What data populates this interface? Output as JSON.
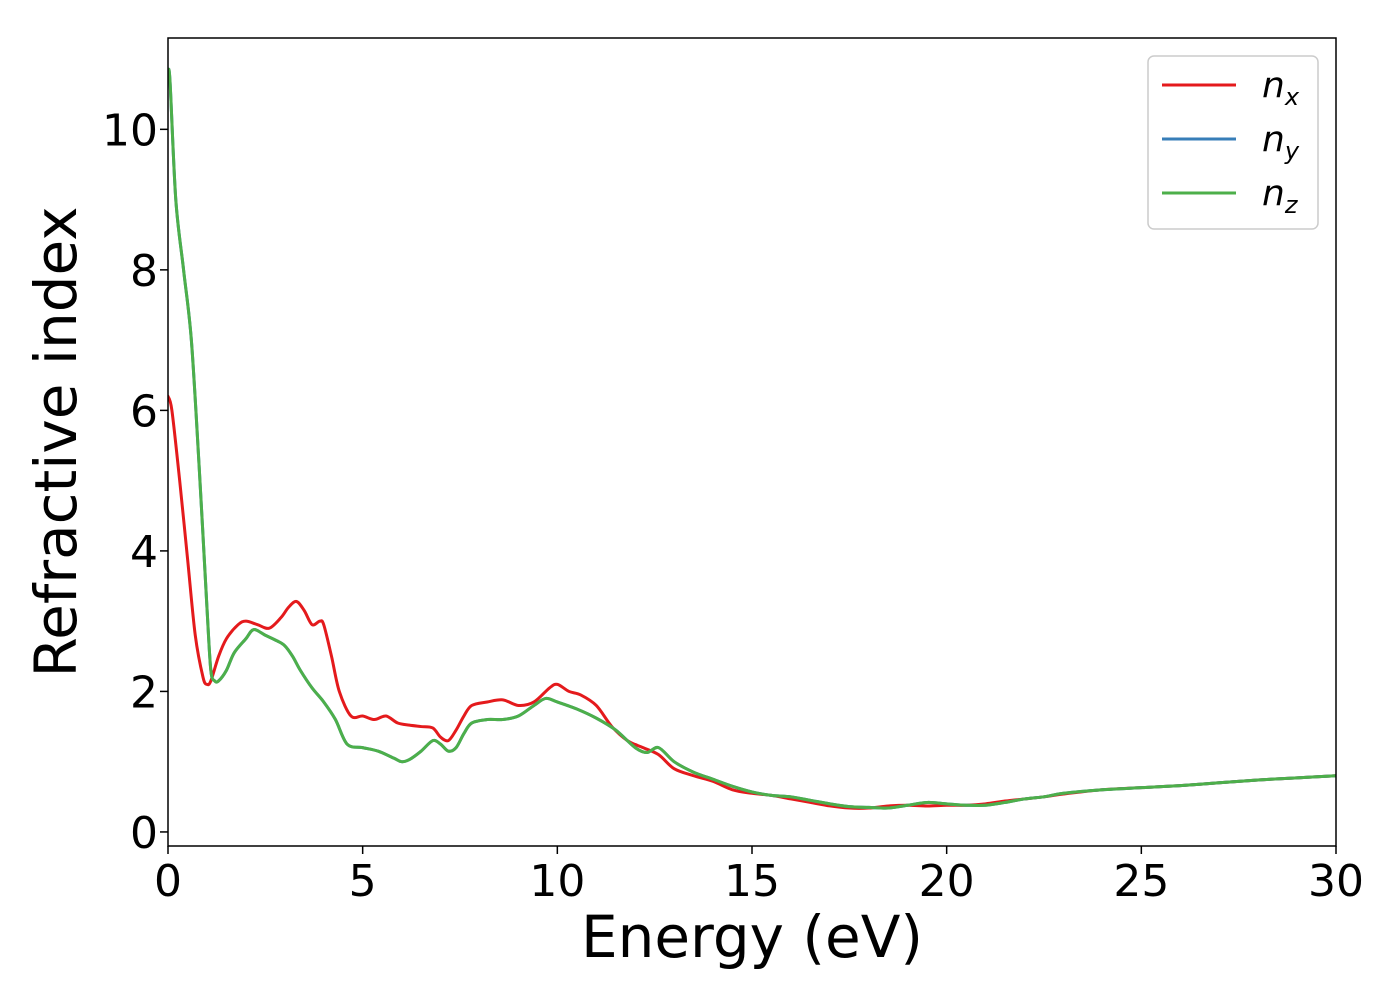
{
  "chart_data": {
    "type": "line",
    "title": "",
    "xlabel": "Energy (eV)",
    "ylabel": "Refractive index",
    "xlim": [
      0,
      30
    ],
    "ylim": [
      -0.2,
      11.3
    ],
    "xticks": [
      "0",
      "5",
      "10",
      "15",
      "20",
      "25",
      "30"
    ],
    "yticks": [
      "0",
      "2",
      "4",
      "6",
      "8",
      "10"
    ],
    "grid": false,
    "legend_position": "top-right",
    "series": [
      {
        "name": "n",
        "subscript": "x",
        "color": "#e41a1c",
        "x": [
          0,
          0.1,
          0.3,
          0.5,
          0.7,
          0.9,
          1.0,
          1.1,
          1.3,
          1.5,
          1.8,
          2.0,
          2.3,
          2.6,
          2.9,
          3.1,
          3.3,
          3.5,
          3.7,
          3.9,
          4.0,
          4.2,
          4.4,
          4.7,
          5.0,
          5.3,
          5.6,
          5.9,
          6.2,
          6.5,
          6.8,
          7.0,
          7.2,
          7.4,
          7.6,
          7.8,
          8.2,
          8.6,
          9.0,
          9.4,
          9.8,
          10.0,
          10.3,
          10.6,
          11.0,
          11.4,
          11.8,
          12.2,
          12.6,
          13.0,
          13.5,
          14.0,
          14.5,
          15.0,
          15.5,
          16.0,
          16.5,
          17.0,
          17.5,
          18.0,
          18.5,
          19.0,
          19.5,
          20.0,
          20.5,
          21.0,
          21.5,
          22.0,
          22.5,
          23.0,
          24.0,
          25.0,
          26.0,
          27.0,
          28.0,
          29.0,
          30.0
        ],
        "y": [
          6.2,
          6.0,
          5.0,
          3.9,
          2.8,
          2.2,
          2.1,
          2.15,
          2.5,
          2.75,
          2.95,
          3.0,
          2.95,
          2.9,
          3.05,
          3.2,
          3.28,
          3.15,
          2.95,
          3.0,
          2.95,
          2.5,
          2.0,
          1.65,
          1.65,
          1.6,
          1.65,
          1.55,
          1.52,
          1.5,
          1.48,
          1.35,
          1.3,
          1.45,
          1.65,
          1.8,
          1.85,
          1.88,
          1.8,
          1.85,
          2.05,
          2.1,
          2.0,
          1.95,
          1.8,
          1.5,
          1.3,
          1.2,
          1.1,
          0.9,
          0.8,
          0.72,
          0.6,
          0.55,
          0.52,
          0.47,
          0.42,
          0.37,
          0.34,
          0.34,
          0.37,
          0.38,
          0.37,
          0.38,
          0.38,
          0.4,
          0.44,
          0.47,
          0.5,
          0.54,
          0.6,
          0.63,
          0.66,
          0.7,
          0.74,
          0.77,
          0.8
        ]
      },
      {
        "name": "n",
        "subscript": "y",
        "color": "#377eb8",
        "x": [
          0,
          0.05,
          0.2,
          0.4,
          0.6,
          0.8,
          1.0,
          1.1,
          1.2,
          1.3,
          1.5,
          1.7,
          2.0,
          2.2,
          2.5,
          2.8,
          3.0,
          3.2,
          3.4,
          3.7,
          4.0,
          4.3,
          4.6,
          5.0,
          5.4,
          5.8,
          6.0,
          6.2,
          6.5,
          6.8,
          7.0,
          7.2,
          7.4,
          7.6,
          7.8,
          8.2,
          8.6,
          9.0,
          9.4,
          9.7,
          10.0,
          10.5,
          11.0,
          11.5,
          12.0,
          12.3,
          12.6,
          13.0,
          13.5,
          14.0,
          14.5,
          15.0,
          15.5,
          16.0,
          16.5,
          17.0,
          17.5,
          18.0,
          18.5,
          19.0,
          19.5,
          20.0,
          20.5,
          21.0,
          21.5,
          22.0,
          22.5,
          23.0,
          24.0,
          25.0,
          26.0,
          27.0,
          28.0,
          29.0,
          30.0
        ],
        "y": [
          10.8,
          10.7,
          9.0,
          8.0,
          7.0,
          5.2,
          3.2,
          2.3,
          2.15,
          2.15,
          2.3,
          2.55,
          2.75,
          2.88,
          2.8,
          2.72,
          2.65,
          2.5,
          2.3,
          2.05,
          1.85,
          1.6,
          1.25,
          1.2,
          1.15,
          1.05,
          1.0,
          1.03,
          1.15,
          1.3,
          1.25,
          1.15,
          1.2,
          1.4,
          1.55,
          1.6,
          1.6,
          1.65,
          1.8,
          1.9,
          1.85,
          1.75,
          1.62,
          1.45,
          1.2,
          1.13,
          1.2,
          1.0,
          0.85,
          0.75,
          0.65,
          0.57,
          0.52,
          0.5,
          0.45,
          0.4,
          0.36,
          0.35,
          0.34,
          0.38,
          0.42,
          0.4,
          0.38,
          0.38,
          0.42,
          0.47,
          0.5,
          0.55,
          0.6,
          0.63,
          0.66,
          0.7,
          0.74,
          0.77,
          0.8
        ]
      },
      {
        "name": "n",
        "subscript": "z",
        "color": "#4daf4a",
        "x": [
          0,
          0.05,
          0.2,
          0.4,
          0.6,
          0.8,
          1.0,
          1.1,
          1.2,
          1.3,
          1.5,
          1.7,
          2.0,
          2.2,
          2.5,
          2.8,
          3.0,
          3.2,
          3.4,
          3.7,
          4.0,
          4.3,
          4.6,
          5.0,
          5.4,
          5.8,
          6.0,
          6.2,
          6.5,
          6.8,
          7.0,
          7.2,
          7.4,
          7.6,
          7.8,
          8.2,
          8.6,
          9.0,
          9.4,
          9.7,
          10.0,
          10.5,
          11.0,
          11.5,
          12.0,
          12.3,
          12.6,
          13.0,
          13.5,
          14.0,
          14.5,
          15.0,
          15.5,
          16.0,
          16.5,
          17.0,
          17.5,
          18.0,
          18.5,
          19.0,
          19.5,
          20.0,
          20.5,
          21.0,
          21.5,
          22.0,
          22.5,
          23.0,
          24.0,
          25.0,
          26.0,
          27.0,
          28.0,
          29.0,
          30.0
        ],
        "y": [
          10.8,
          10.7,
          9.0,
          8.0,
          7.0,
          5.2,
          3.2,
          2.3,
          2.15,
          2.15,
          2.3,
          2.55,
          2.75,
          2.88,
          2.8,
          2.72,
          2.65,
          2.5,
          2.3,
          2.05,
          1.85,
          1.6,
          1.25,
          1.2,
          1.15,
          1.05,
          1.0,
          1.03,
          1.15,
          1.3,
          1.25,
          1.15,
          1.2,
          1.4,
          1.55,
          1.6,
          1.6,
          1.65,
          1.8,
          1.9,
          1.85,
          1.75,
          1.62,
          1.45,
          1.2,
          1.13,
          1.2,
          1.0,
          0.85,
          0.75,
          0.65,
          0.57,
          0.52,
          0.5,
          0.45,
          0.4,
          0.36,
          0.35,
          0.34,
          0.38,
          0.42,
          0.4,
          0.38,
          0.38,
          0.42,
          0.47,
          0.5,
          0.55,
          0.6,
          0.63,
          0.66,
          0.7,
          0.74,
          0.77,
          0.8
        ]
      }
    ]
  }
}
